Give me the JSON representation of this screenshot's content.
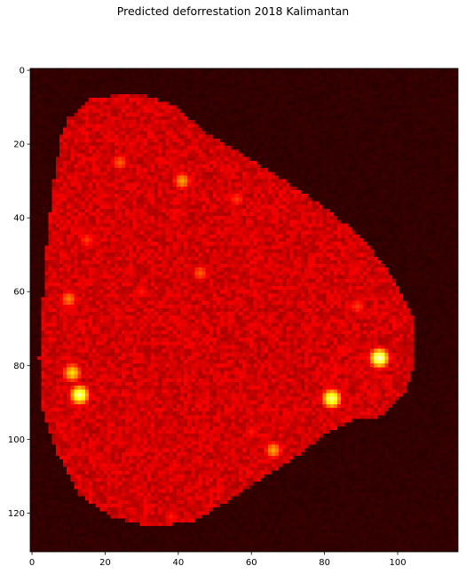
{
  "chart_data": {
    "type": "heatmap",
    "title": "Predicted deforrestation 2018 Kalimantan",
    "xlabel": "",
    "ylabel": "",
    "colormap": "hot",
    "grid_shape": [
      131,
      117
    ],
    "xlim": [
      -0.5,
      116.5
    ],
    "ylim": [
      130.5,
      -0.5
    ],
    "xticks": [
      0,
      20,
      40,
      60,
      80,
      100
    ],
    "yticks": [
      0,
      20,
      40,
      60,
      80,
      100,
      120
    ],
    "value_range": [
      0,
      1
    ],
    "grid": false,
    "colorbar": false,
    "description_levels": {
      "background": 0.06,
      "island_body": 0.3,
      "dark_boundary": 0.0
    },
    "hotspots": [
      {
        "x": 95,
        "y": 78,
        "value": 0.95
      },
      {
        "x": 13,
        "y": 88,
        "value": 0.9
      },
      {
        "x": 82,
        "y": 89,
        "value": 0.88
      },
      {
        "x": 11,
        "y": 82,
        "value": 0.7
      },
      {
        "x": 41,
        "y": 30,
        "value": 0.6
      },
      {
        "x": 10,
        "y": 62,
        "value": 0.55
      },
      {
        "x": 66,
        "y": 103,
        "value": 0.6
      },
      {
        "x": 24,
        "y": 25,
        "value": 0.5
      },
      {
        "x": 46,
        "y": 55,
        "value": 0.5
      },
      {
        "x": 15,
        "y": 46,
        "value": 0.45
      },
      {
        "x": 56,
        "y": 35,
        "value": 0.45
      },
      {
        "x": 89,
        "y": 64,
        "value": 0.45
      },
      {
        "x": 38,
        "y": 121,
        "value": 0.4
      },
      {
        "x": 60,
        "y": 98,
        "value": 0.4
      },
      {
        "x": 30,
        "y": 60,
        "value": 0.4
      }
    ]
  }
}
